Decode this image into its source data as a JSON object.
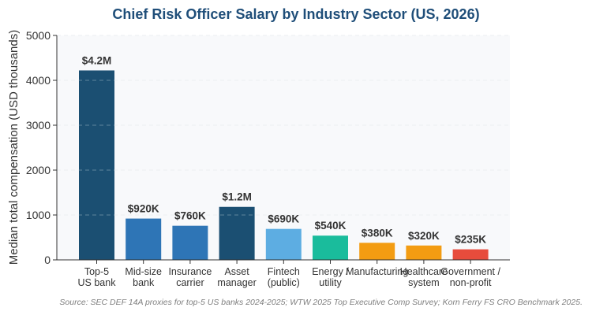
{
  "chart_data": {
    "type": "bar",
    "title": "Chief Risk Officer Salary by Industry Sector (US, 2026)",
    "xlabel": "",
    "ylabel": "Median total compensation (USD thousands)",
    "ylim": [
      0,
      5000
    ],
    "yticks": [
      0,
      1000,
      2000,
      3000,
      4000,
      5000
    ],
    "grid": true,
    "categories": [
      [
        "Top-5",
        "US bank"
      ],
      [
        "Mid-size",
        "bank"
      ],
      [
        "Insurance",
        "carrier"
      ],
      [
        "Asset",
        "manager"
      ],
      [
        "Fintech",
        "(public)"
      ],
      [
        "Energy /",
        "utility"
      ],
      [
        "Manufacturing"
      ],
      [
        "Healthcare",
        "system"
      ],
      [
        "Government /",
        "non-profit"
      ]
    ],
    "values": [
      4220,
      920,
      760,
      1180,
      690,
      540,
      380,
      320,
      235
    ],
    "data_labels": [
      "$4.2M",
      "$920K",
      "$760K",
      "$1.2M",
      "$690K",
      "$540K",
      "$380K",
      "$320K",
      "$235K"
    ],
    "colors": [
      "#1b4f72",
      "#2e75b6",
      "#2e75b6",
      "#1b4f72",
      "#5dade2",
      "#1abc9c",
      "#f39c12",
      "#f39c12",
      "#e74c3c"
    ],
    "source": "Source: SEC DEF 14A proxies for top-5 US banks 2024-2025; WTW 2025 Top Executive Comp Survey; Korn Ferry FS CRO Benchmark 2025."
  }
}
